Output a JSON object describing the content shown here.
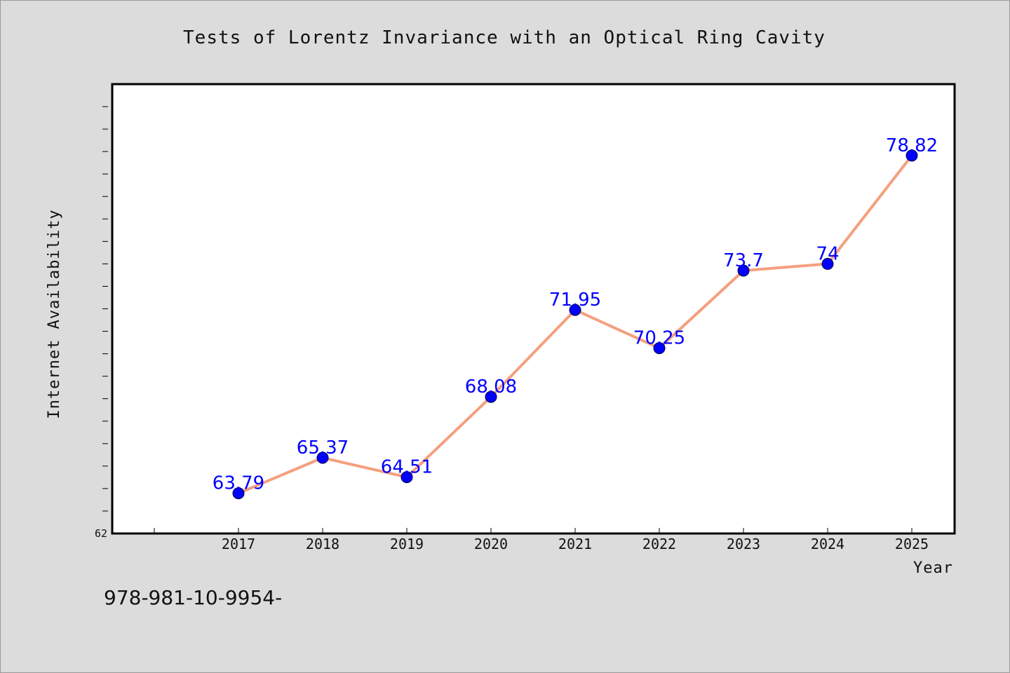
{
  "chart_data": {
    "type": "line",
    "title": "Tests of Lorentz Invariance with an Optical Ring Cavity",
    "xlabel": "Year",
    "ylabel": "Internet Availability",
    "categories": [
      "2017",
      "2018",
      "2019",
      "2020",
      "2021",
      "2022",
      "2023",
      "2024",
      "2025"
    ],
    "series": [
      {
        "values": [
          63.79,
          65.37,
          64.51,
          68.08,
          71.95,
          70.25,
          73.7,
          74,
          78.82
        ],
        "data_labels": [
          "63.79",
          "65.37",
          "64.51",
          "68.08",
          "71.95",
          "70.25",
          "73.7",
          "74",
          "78.82"
        ]
      }
    ],
    "ylim": [
      62,
      82
    ],
    "y_min_label": "62",
    "grid": false,
    "line_color": "#f4a07e",
    "marker_color": "#0000ff",
    "label_color": "#0000ff",
    "plot_background": "#ffffff",
    "page_background": "#dcdcdc"
  },
  "footnote": "978-981-10-9954-"
}
